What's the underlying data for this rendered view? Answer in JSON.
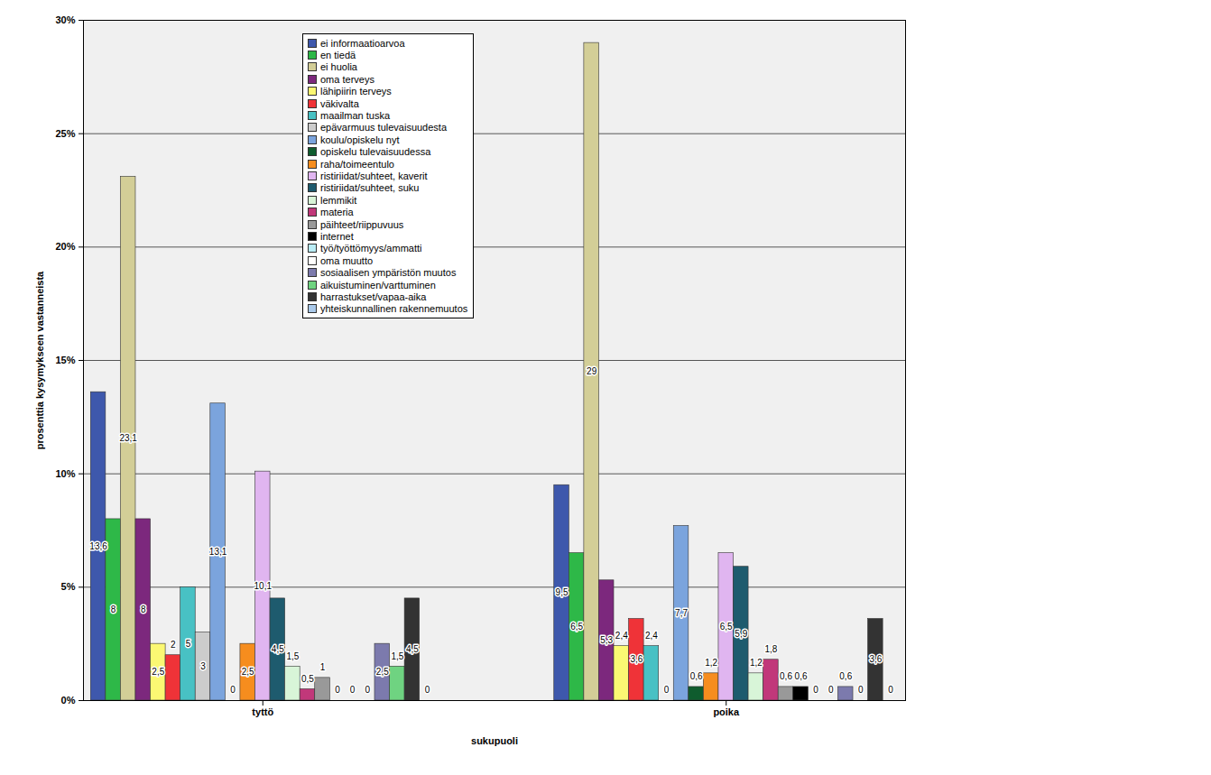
{
  "chart_data": {
    "type": "bar",
    "categories": [
      "tyttö",
      "poika"
    ],
    "xlabel": "sukupuoli",
    "ylabel": "prosenttia kysymykseen vastanneista",
    "ylim": [
      0,
      30
    ],
    "yticks": [
      {
        "value": 0,
        "label": "0%"
      },
      {
        "value": 5,
        "label": "5%"
      },
      {
        "value": 10,
        "label": "10%"
      },
      {
        "value": 15,
        "label": "15%"
      },
      {
        "value": 20,
        "label": "20%"
      },
      {
        "value": 25,
        "label": "25%"
      },
      {
        "value": 30,
        "label": "30%"
      }
    ],
    "grid": true,
    "legend": "top",
    "data_labels": true,
    "series": [
      {
        "name": "ei informaatioarvoa",
        "color": "#3e58ac",
        "values": [
          13.6,
          9.5
        ],
        "value_labels": [
          "13,6",
          "9,5"
        ]
      },
      {
        "name": "en tiedä",
        "color": "#2eb848",
        "values": [
          8,
          6.5
        ],
        "value_labels": [
          "8",
          "6,5"
        ]
      },
      {
        "name": "ei huolia",
        "color": "#d3ce97",
        "values": [
          23.1,
          29
        ],
        "value_labels": [
          "23,1",
          "29"
        ]
      },
      {
        "name": "oma terveys",
        "color": "#7c287d",
        "values": [
          8,
          5.3
        ],
        "value_labels": [
          "8",
          "5,3"
        ]
      },
      {
        "name": "lähipiirin terveys",
        "color": "#fbf873",
        "values": [
          2.5,
          2.4
        ],
        "value_labels": [
          "2,5",
          "2,4"
        ]
      },
      {
        "name": "väkivalta",
        "color": "#ef3338",
        "values": [
          2,
          3.6
        ],
        "value_labels": [
          "2",
          "3,6"
        ]
      },
      {
        "name": "maailman tuska",
        "color": "#48c1c4",
        "values": [
          5,
          2.4
        ],
        "value_labels": [
          "5",
          "2,4"
        ]
      },
      {
        "name": "epävarmuus tulevaisuudesta",
        "color": "#cccccc",
        "values": [
          3,
          0
        ],
        "value_labels": [
          "3",
          "0"
        ]
      },
      {
        "name": "koulu/opiskelu nyt",
        "color": "#7ba4dd",
        "values": [
          13.1,
          7.7
        ],
        "value_labels": [
          "13,1",
          "7,7"
        ]
      },
      {
        "name": "opiskelu tulevaisuudessa",
        "color": "#0f5c2e",
        "values": [
          0,
          0.6
        ],
        "value_labels": [
          "0",
          "0,6"
        ]
      },
      {
        "name": "raha/toimeentulo",
        "color": "#f68d1e",
        "values": [
          2.5,
          1.2
        ],
        "value_labels": [
          "2,5",
          "1,2"
        ]
      },
      {
        "name": "ristiriidat/suhteet, kaverit",
        "color": "#e0b5f0",
        "values": [
          10.1,
          6.5
        ],
        "value_labels": [
          "10,1",
          "6,5"
        ]
      },
      {
        "name": "ristiriidat/suhteet, suku",
        "color": "#1e5b6e",
        "values": [
          4.5,
          5.9
        ],
        "value_labels": [
          "4,5",
          "5,9"
        ]
      },
      {
        "name": "lemmikit",
        "color": "#d8f5d8",
        "values": [
          1.5,
          1.2
        ],
        "value_labels": [
          "1,5",
          "1,2"
        ]
      },
      {
        "name": "materia",
        "color": "#c1387a",
        "values": [
          0.5,
          1.8
        ],
        "value_labels": [
          "0,5",
          "1,8"
        ]
      },
      {
        "name": "päihteet/riippuvuus",
        "color": "#999999",
        "values": [
          1,
          0.6
        ],
        "value_labels": [
          "1",
          "0,6"
        ]
      },
      {
        "name": "internet",
        "color": "#000000",
        "values": [
          0,
          0.6
        ],
        "value_labels": [
          "0",
          "0,6"
        ]
      },
      {
        "name": "työ/työttömyys/ammatti",
        "color": "#b9ecf5",
        "values": [
          0,
          0
        ],
        "value_labels": [
          "0",
          "0"
        ]
      },
      {
        "name": "oma muutto",
        "color": "#ffffff",
        "values": [
          0,
          0
        ],
        "value_labels": [
          "0",
          "0"
        ]
      },
      {
        "name": "sosiaalisen ympäristön muutos",
        "color": "#7c7aad",
        "values": [
          2.5,
          0.6
        ],
        "value_labels": [
          "2,5",
          "0,6"
        ]
      },
      {
        "name": "aikuistuminen/varttuminen",
        "color": "#6fd381",
        "values": [
          1.5,
          0
        ],
        "value_labels": [
          "1,5",
          "0"
        ]
      },
      {
        "name": "harrastukset/vapaa-aika",
        "color": "#333333",
        "values": [
          4.5,
          3.6
        ],
        "value_labels": [
          "4,5",
          "3,6"
        ]
      },
      {
        "name": "yhteiskunnallinen rakennemuutos",
        "color": "#a9c9ea",
        "values": [
          0,
          0
        ],
        "value_labels": [
          "0",
          "0"
        ]
      }
    ]
  }
}
